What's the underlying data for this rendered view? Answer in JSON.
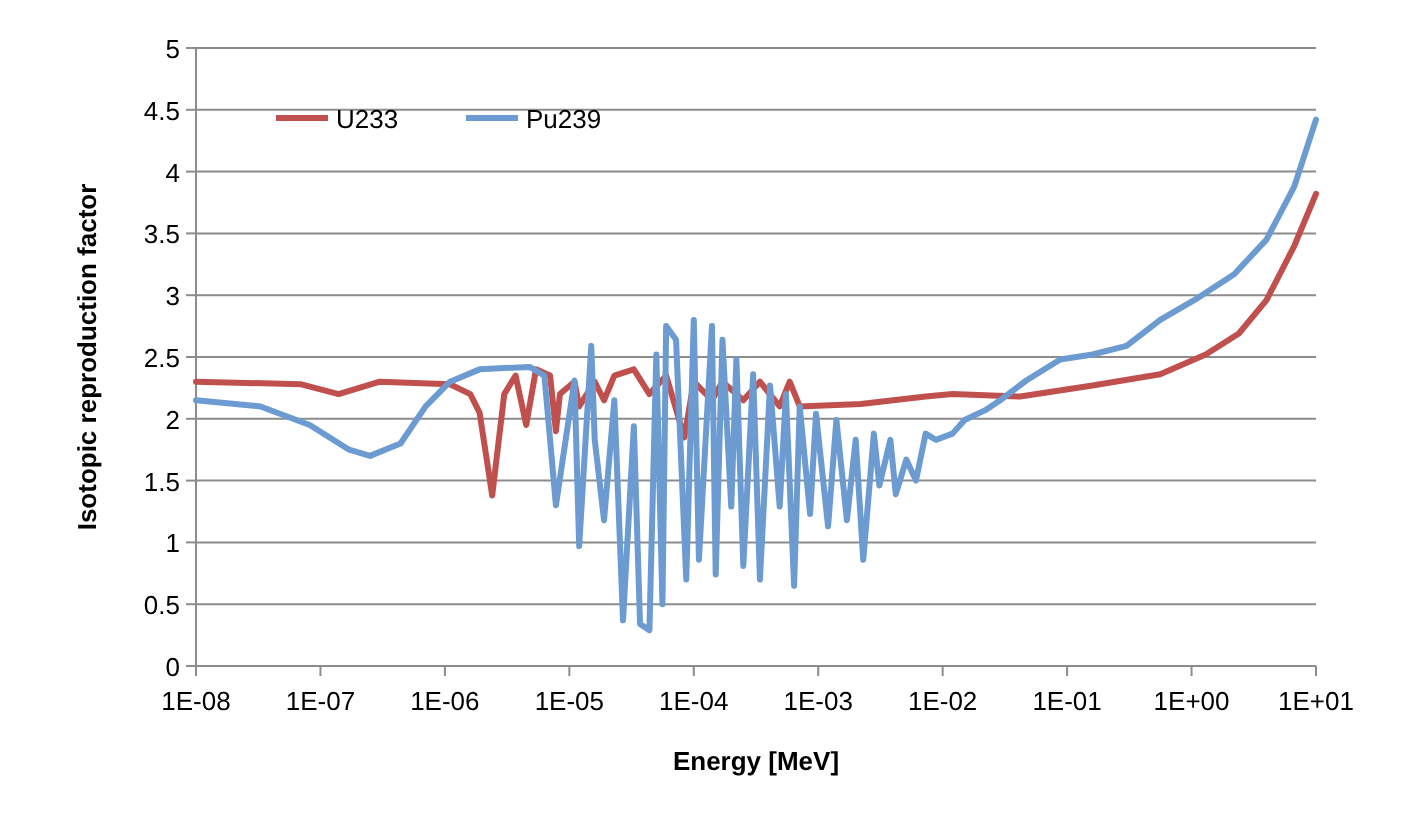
{
  "chart_data": {
    "type": "line",
    "xlabel": "Energy [MeV]",
    "ylabel": "Isotopic reproduction factor",
    "log": "x",
    "xlim": [
      1e-08,
      10
    ],
    "xticks": [
      {
        "value": 1e-08,
        "label": "1E-08"
      },
      {
        "value": 1e-07,
        "label": "1E-07"
      },
      {
        "value": 1e-06,
        "label": "1E-06"
      },
      {
        "value": 1e-05,
        "label": "1E-05"
      },
      {
        "value": 0.0001,
        "label": "1E-04"
      },
      {
        "value": 0.001,
        "label": "1E-03"
      },
      {
        "value": 0.01,
        "label": "1E-02"
      },
      {
        "value": 0.1,
        "label": "1E-01"
      },
      {
        "value": 1,
        "label": "1E+00"
      },
      {
        "value": 10,
        "label": "1E+01"
      }
    ],
    "ylim": [
      0,
      5
    ],
    "yticks": [
      0,
      0.5,
      1,
      1.5,
      2,
      2.5,
      3,
      3.5,
      4,
      4.5,
      5
    ],
    "grid": "y",
    "legend": "top left",
    "series": [
      {
        "name": "U233",
        "color": "#c0504d",
        "x": [
          1e-08,
          6.9e-08,
          1.4e-07,
          3e-07,
          1.1e-06,
          1.6e-06,
          1.9e-06,
          2.4e-06,
          3e-06,
          3.7e-06,
          4.5e-06,
          5.4e-06,
          7e-06,
          7.8e-06,
          8.4e-06,
          1.1e-05,
          1.2e-05,
          1.6e-05,
          1.9e-05,
          2.3e-05,
          3.3e-05,
          4.4e-05,
          6e-05,
          8.4e-05,
          0.0001,
          0.00014,
          0.00017,
          0.00025,
          0.00034,
          0.00049,
          0.00059,
          0.00071,
          0.0022,
          0.0073,
          0.012,
          0.042,
          0.16,
          0.56,
          1.3,
          2.4,
          4.0,
          6.7,
          10
        ],
        "values": [
          2.3,
          2.28,
          2.2,
          2.3,
          2.28,
          2.2,
          2.05,
          1.38,
          2.2,
          2.35,
          1.95,
          2.4,
          2.35,
          1.9,
          2.2,
          2.3,
          2.1,
          2.3,
          2.15,
          2.35,
          2.4,
          2.2,
          2.35,
          1.85,
          2.3,
          2.15,
          2.3,
          2.15,
          2.3,
          2.1,
          2.3,
          2.1,
          2.12,
          2.18,
          2.2,
          2.18,
          2.27,
          2.36,
          2.52,
          2.69,
          2.96,
          3.4,
          3.82
        ]
      },
      {
        "name": "Pu239",
        "color": "#6b9bd1",
        "x": [
          1e-08,
          3.3e-08,
          8.2e-08,
          1.7e-07,
          2.5e-07,
          4.4e-07,
          7e-07,
          1.1e-06,
          1.9e-06,
          4.8e-06,
          6.3e-06,
          7.8e-06,
          1.1e-05,
          1.2e-05,
          1.5e-05,
          1.6e-05,
          1.9e-05,
          2.3e-05,
          2.7e-05,
          3.3e-05,
          3.7e-05,
          4.4e-05,
          5e-05,
          5.6e-05,
          6e-05,
          7.2e-05,
          8.7e-05,
          0.0001,
          0.00011,
          0.00014,
          0.00015,
          0.00017,
          0.0002,
          0.00022,
          0.00025,
          0.0003,
          0.00034,
          0.00041,
          0.00049,
          0.00055,
          0.00064,
          0.00071,
          0.00086,
          0.00096,
          0.0012,
          0.0014,
          0.0017,
          0.002,
          0.0023,
          0.0028,
          0.0031,
          0.0038,
          0.0042,
          0.0051,
          0.0061,
          0.0073,
          0.0088,
          0.012,
          0.015,
          0.022,
          0.029,
          0.047,
          0.088,
          0.16,
          0.3,
          0.56,
          1.05,
          2.2,
          4.0,
          6.7,
          10
        ],
        "values": [
          2.15,
          2.1,
          1.95,
          1.75,
          1.7,
          1.8,
          2.1,
          2.3,
          2.4,
          2.42,
          2.35,
          1.3,
          2.31,
          0.97,
          2.59,
          1.83,
          1.18,
          2.15,
          0.37,
          1.94,
          0.34,
          0.29,
          2.52,
          0.5,
          2.75,
          2.64,
          0.7,
          2.8,
          0.86,
          2.75,
          0.74,
          2.64,
          1.29,
          2.48,
          0.81,
          2.36,
          0.7,
          2.27,
          1.29,
          2.2,
          0.65,
          2.1,
          1.23,
          2.04,
          1.13,
          1.99,
          1.18,
          1.83,
          0.86,
          1.88,
          1.46,
          1.83,
          1.39,
          1.67,
          1.5,
          1.88,
          1.83,
          1.88,
          1.99,
          2.07,
          2.15,
          2.31,
          2.48,
          2.52,
          2.59,
          2.8,
          2.96,
          3.17,
          3.45,
          3.88,
          4.42
        ]
      }
    ]
  }
}
